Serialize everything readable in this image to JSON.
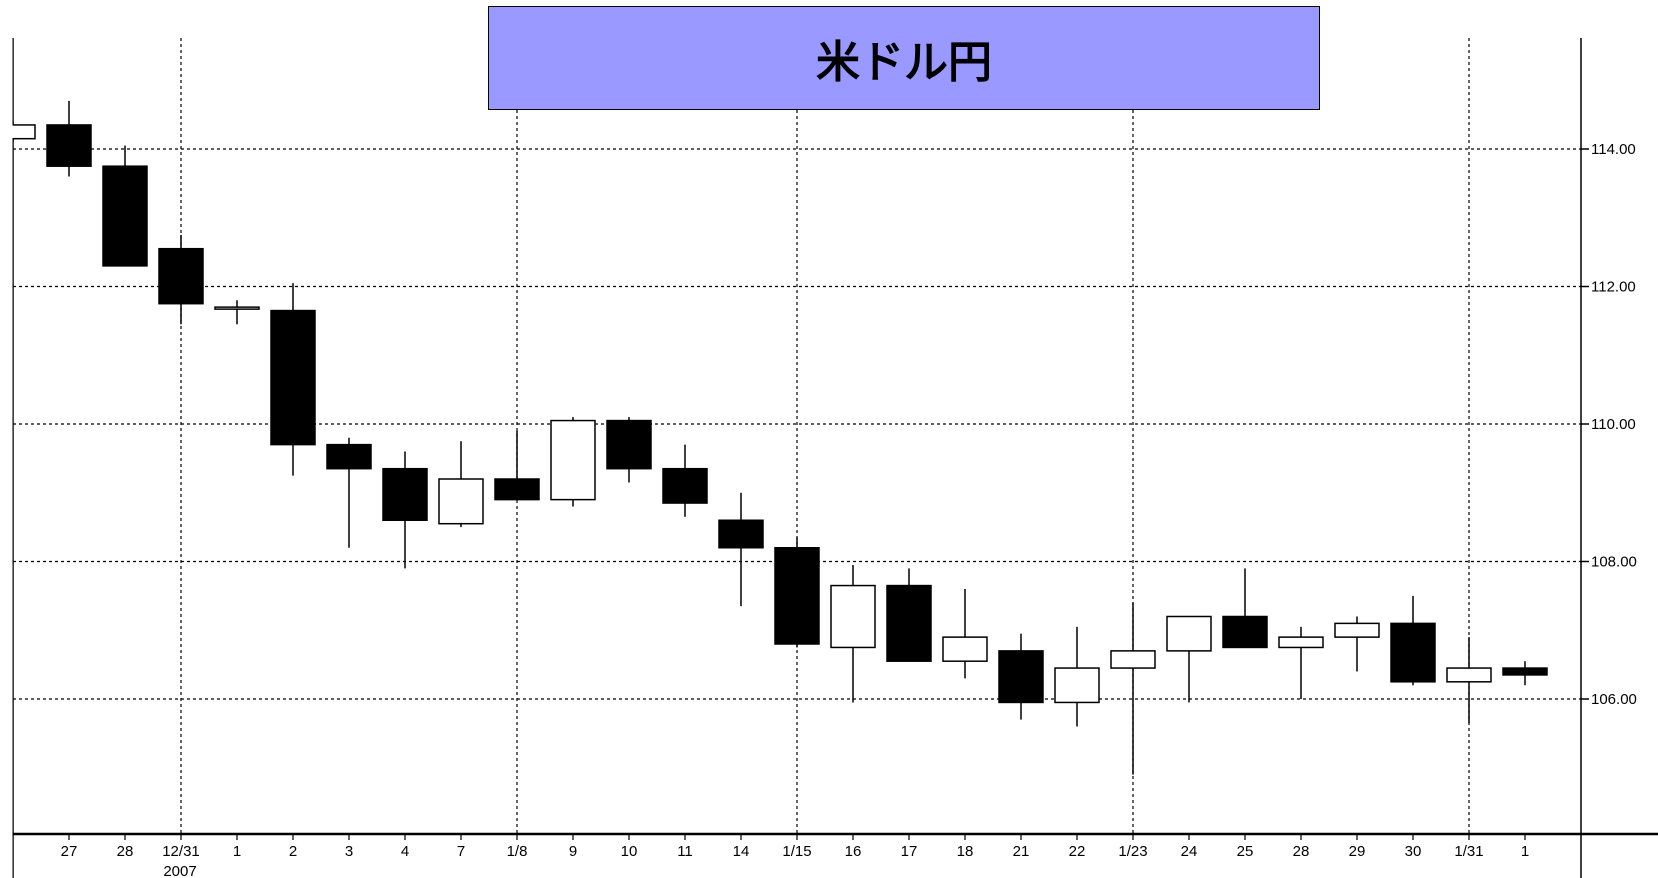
{
  "chart_data": {
    "type": "candlestick",
    "title": "米ドル円",
    "title_bg": "#9999ff",
    "ylim": [
      104.2,
      116.5
    ],
    "yticks": [
      "114.00",
      "112.00",
      "110.00",
      "108.00",
      "106.00"
    ],
    "grid": true,
    "x_labels": [
      "",
      "27",
      "28",
      "12/31",
      "1",
      "2",
      "3",
      "4",
      "7",
      "1/8",
      "9",
      "10",
      "11",
      "14",
      "1/15",
      "16",
      "17",
      "18",
      "21",
      "22",
      "1/23",
      "24",
      "25",
      "28",
      "29",
      "30",
      "1/31",
      "1"
    ],
    "year_label": "2007",
    "bullish_color": "#ffffff",
    "bearish_color": "#000000",
    "candles": [
      {
        "o": 114.15,
        "h": 114.4,
        "l": 114.1,
        "c": 114.35
      },
      {
        "o": 114.35,
        "h": 114.7,
        "l": 113.6,
        "c": 113.75
      },
      {
        "o": 113.75,
        "h": 114.05,
        "l": 112.3,
        "c": 112.3
      },
      {
        "o": 112.55,
        "h": 112.75,
        "l": 111.45,
        "c": 111.75
      },
      {
        "o": 111.7,
        "h": 111.8,
        "l": 111.45,
        "c": 111.7
      },
      {
        "o": 111.65,
        "h": 112.05,
        "l": 109.25,
        "c": 109.7
      },
      {
        "o": 109.7,
        "h": 109.8,
        "l": 108.2,
        "c": 109.35
      },
      {
        "o": 109.35,
        "h": 109.6,
        "l": 107.9,
        "c": 108.6
      },
      {
        "o": 108.55,
        "h": 109.75,
        "l": 108.5,
        "c": 109.2
      },
      {
        "o": 109.2,
        "h": 109.9,
        "l": 108.9,
        "c": 108.9
      },
      {
        "o": 108.9,
        "h": 110.1,
        "l": 108.8,
        "c": 110.05
      },
      {
        "o": 110.05,
        "h": 110.1,
        "l": 109.15,
        "c": 109.35
      },
      {
        "o": 109.35,
        "h": 109.7,
        "l": 108.65,
        "c": 108.85
      },
      {
        "o": 108.6,
        "h": 109.0,
        "l": 107.35,
        "c": 108.2
      },
      {
        "o": 108.2,
        "h": 108.35,
        "l": 106.75,
        "c": 106.8
      },
      {
        "o": 106.75,
        "h": 107.95,
        "l": 105.95,
        "c": 107.65
      },
      {
        "o": 107.65,
        "h": 107.9,
        "l": 106.55,
        "c": 106.55
      },
      {
        "o": 106.55,
        "h": 107.6,
        "l": 106.3,
        "c": 106.9
      },
      {
        "o": 106.7,
        "h": 106.95,
        "l": 105.7,
        "c": 105.95
      },
      {
        "o": 105.95,
        "h": 107.05,
        "l": 105.6,
        "c": 106.45
      },
      {
        "o": 106.45,
        "h": 107.4,
        "l": 104.9,
        "c": 106.7
      },
      {
        "o": 106.7,
        "h": 107.2,
        "l": 105.95,
        "c": 107.2
      },
      {
        "o": 107.2,
        "h": 107.9,
        "l": 106.75,
        "c": 106.75
      },
      {
        "o": 106.75,
        "h": 107.05,
        "l": 106.0,
        "c": 106.9
      },
      {
        "o": 106.9,
        "h": 107.2,
        "l": 106.4,
        "c": 107.1
      },
      {
        "o": 107.1,
        "h": 107.5,
        "l": 106.2,
        "c": 106.25
      },
      {
        "o": 106.25,
        "h": 106.9,
        "l": 105.65,
        "c": 106.45
      },
      {
        "o": 106.45,
        "h": 106.55,
        "l": 106.2,
        "c": 106.35
      }
    ]
  }
}
